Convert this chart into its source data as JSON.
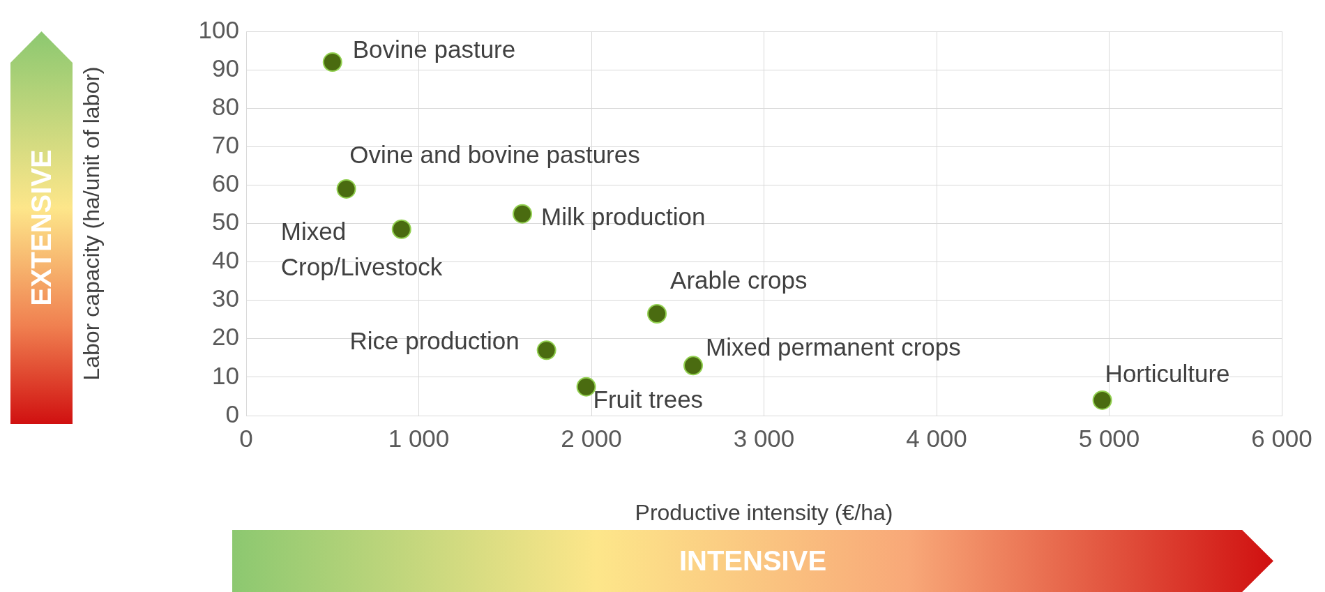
{
  "chart_data": {
    "type": "scatter",
    "xlabel": "Productive intensity (€/ha)",
    "ylabel": "Labor capacity (ha/unit of labor)",
    "x": [
      500,
      580,
      900,
      1600,
      2380,
      1740,
      2590,
      1970,
      4960
    ],
    "values": [
      92,
      59,
      48.5,
      52.5,
      26.5,
      17,
      13,
      7.5,
      4
    ],
    "color": "#4a6b10",
    "marker": "circle",
    "grid": true,
    "xlim": [
      0,
      6000
    ],
    "xticks": [
      0,
      {
        "value": 1000,
        "label": "1 000"
      },
      {
        "value": 2000,
        "label": "2 000"
      },
      {
        "value": 3000,
        "label": "3 000"
      },
      {
        "value": 4000,
        "label": "4 000"
      },
      {
        "value": 5000,
        "label": "5 000"
      },
      {
        "value": 6000,
        "label": "6 000"
      }
    ],
    "ylim": [
      0,
      100
    ],
    "yticks": [
      0,
      10,
      20,
      30,
      40,
      50,
      60,
      70,
      80,
      90,
      100
    ],
    "annotations": [
      {
        "text": "Bovine pasture",
        "x": 500,
        "y": 92
      },
      {
        "text": "Ovine and bovine pastures",
        "x": 580,
        "y": 59
      },
      {
        "text": "Mixed Crop/Livestock",
        "x": 900,
        "y": 48.5
      },
      {
        "text": "Milk production",
        "x": 1600,
        "y": 52.5
      },
      {
        "text": "Arable crops",
        "x": 2380,
        "y": 26.5
      },
      {
        "text": "Rice production",
        "x": 1740,
        "y": 17
      },
      {
        "text": "Mixed permanent crops",
        "x": 2590,
        "y": 13
      },
      {
        "text": "Fruit trees",
        "x": 1970,
        "y": 7.5
      },
      {
        "text": "Horticulture",
        "x": 4960,
        "y": 4
      },
      "EXTENSIVE",
      "INTENSIVE"
    ]
  }
}
